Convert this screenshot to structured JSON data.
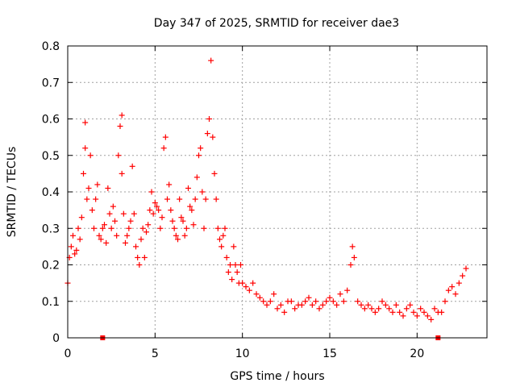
{
  "chart_data": {
    "type": "scatter",
    "title": "Day 347 of 2025, SRMTID for receiver dae3",
    "xlabel": "GPS time / hours",
    "ylabel": "SRMTID / TECUs",
    "xlim": [
      0,
      24
    ],
    "ylim": [
      0,
      0.8
    ],
    "xticks": [
      0,
      5,
      10,
      15,
      20
    ],
    "yticks": [
      0,
      0.1,
      0.2,
      0.3,
      0.4,
      0.5,
      0.6,
      0.7,
      0.8
    ],
    "grid": true,
    "point_color": "#ff0000",
    "gap_markers_x": [
      2.0,
      21.2
    ],
    "series": [
      {
        "name": "SRMTID",
        "marker": "plus",
        "x": [
          0.0,
          0.1,
          0.2,
          0.3,
          0.4,
          0.5,
          0.6,
          0.7,
          0.8,
          0.9,
          1.0,
          1.0,
          1.1,
          1.2,
          1.3,
          1.4,
          1.5,
          1.6,
          1.7,
          1.8,
          1.9,
          2.0,
          2.1,
          2.2,
          2.3,
          2.4,
          2.5,
          2.6,
          2.7,
          2.8,
          2.9,
          3.0,
          3.1,
          3.1,
          3.2,
          3.3,
          3.4,
          3.5,
          3.6,
          3.7,
          3.8,
          3.9,
          4.0,
          4.1,
          4.2,
          4.3,
          4.4,
          4.5,
          4.6,
          4.7,
          4.8,
          4.9,
          5.0,
          5.1,
          5.2,
          5.3,
          5.4,
          5.5,
          5.6,
          5.7,
          5.8,
          5.9,
          6.0,
          6.1,
          6.2,
          6.3,
          6.4,
          6.5,
          6.6,
          6.7,
          6.8,
          6.9,
          7.0,
          7.1,
          7.2,
          7.3,
          7.4,
          7.5,
          7.6,
          7.7,
          7.8,
          7.9,
          8.0,
          8.1,
          8.2,
          8.3,
          8.4,
          8.5,
          8.6,
          8.7,
          8.8,
          8.9,
          9.0,
          9.1,
          9.2,
          9.3,
          9.4,
          9.5,
          9.6,
          9.7,
          9.8,
          9.9,
          10.0,
          10.2,
          10.4,
          10.6,
          10.8,
          11.0,
          11.2,
          11.4,
          11.6,
          11.8,
          12.0,
          12.2,
          12.4,
          12.6,
          12.8,
          13.0,
          13.2,
          13.4,
          13.6,
          13.8,
          14.0,
          14.2,
          14.4,
          14.6,
          14.8,
          15.0,
          15.2,
          15.4,
          15.6,
          15.8,
          16.0,
          16.2,
          16.3,
          16.4,
          16.6,
          16.8,
          17.0,
          17.2,
          17.4,
          17.6,
          17.8,
          18.0,
          18.2,
          18.4,
          18.6,
          18.8,
          19.0,
          19.2,
          19.4,
          19.6,
          19.8,
          20.0,
          20.2,
          20.4,
          20.6,
          20.8,
          21.0,
          21.2,
          21.4,
          21.6,
          21.8,
          22.0,
          22.2,
          22.4,
          22.6,
          22.8
        ],
        "y": [
          0.15,
          0.22,
          0.25,
          0.28,
          0.23,
          0.24,
          0.3,
          0.27,
          0.33,
          0.45,
          0.59,
          0.52,
          0.38,
          0.41,
          0.5,
          0.35,
          0.3,
          0.38,
          0.42,
          0.28,
          0.27,
          0.3,
          0.31,
          0.26,
          0.41,
          0.34,
          0.3,
          0.36,
          0.32,
          0.28,
          0.5,
          0.58,
          0.61,
          0.45,
          0.34,
          0.26,
          0.28,
          0.3,
          0.32,
          0.47,
          0.34,
          0.25,
          0.22,
          0.2,
          0.27,
          0.3,
          0.22,
          0.29,
          0.31,
          0.35,
          0.4,
          0.34,
          0.37,
          0.36,
          0.35,
          0.3,
          0.33,
          0.52,
          0.55,
          0.38,
          0.42,
          0.35,
          0.32,
          0.3,
          0.28,
          0.27,
          0.38,
          0.33,
          0.32,
          0.28,
          0.3,
          0.41,
          0.36,
          0.35,
          0.31,
          0.38,
          0.44,
          0.5,
          0.52,
          0.4,
          0.3,
          0.38,
          0.56,
          0.6,
          0.76,
          0.55,
          0.45,
          0.38,
          0.3,
          0.27,
          0.25,
          0.28,
          0.3,
          0.22,
          0.18,
          0.2,
          0.16,
          0.25,
          0.2,
          0.18,
          0.15,
          0.2,
          0.15,
          0.14,
          0.13,
          0.15,
          0.12,
          0.11,
          0.1,
          0.09,
          0.1,
          0.12,
          0.08,
          0.09,
          0.07,
          0.1,
          0.1,
          0.08,
          0.09,
          0.09,
          0.1,
          0.11,
          0.09,
          0.1,
          0.08,
          0.09,
          0.1,
          0.11,
          0.1,
          0.09,
          0.12,
          0.1,
          0.13,
          0.2,
          0.25,
          0.22,
          0.1,
          0.09,
          0.08,
          0.09,
          0.08,
          0.07,
          0.08,
          0.1,
          0.09,
          0.08,
          0.07,
          0.09,
          0.07,
          0.06,
          0.08,
          0.09,
          0.07,
          0.06,
          0.08,
          0.07,
          0.06,
          0.05,
          0.08,
          0.07,
          0.07,
          0.1,
          0.13,
          0.14,
          0.12,
          0.15,
          0.17,
          0.19
        ]
      }
    ]
  }
}
